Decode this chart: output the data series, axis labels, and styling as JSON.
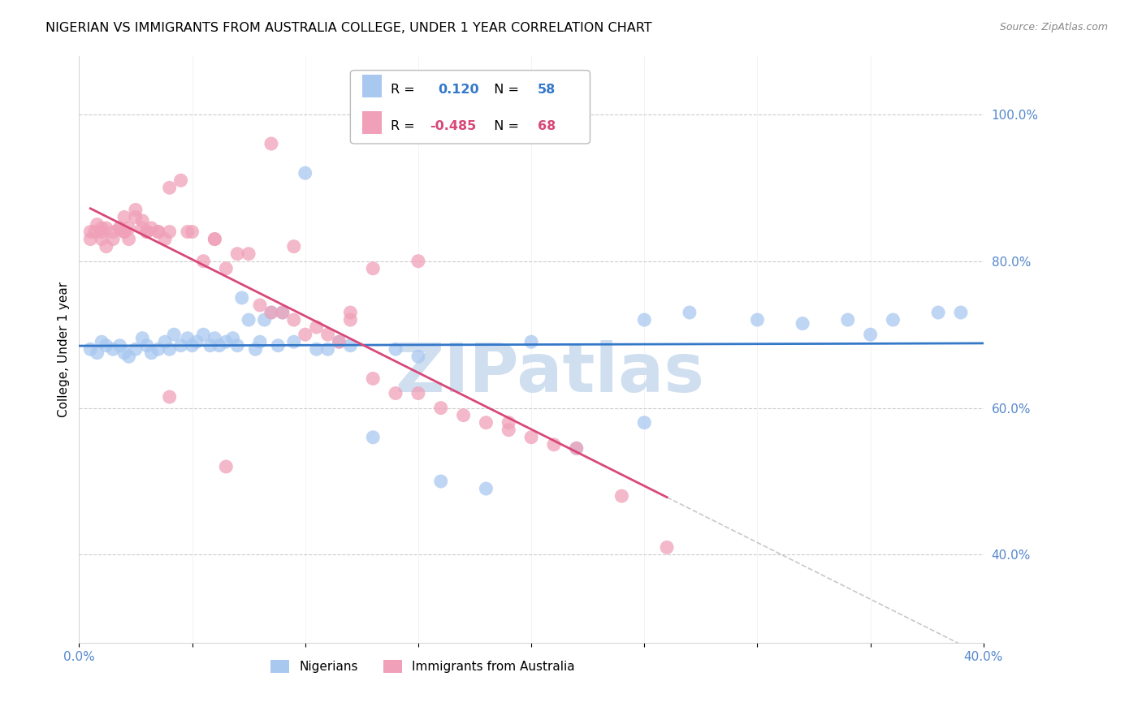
{
  "title": "NIGERIAN VS IMMIGRANTS FROM AUSTRALIA COLLEGE, UNDER 1 YEAR CORRELATION CHART",
  "source": "Source: ZipAtlas.com",
  "ylabel": "College, Under 1 year",
  "right_ytick_vals": [
    0.4,
    0.6,
    0.8,
    1.0
  ],
  "right_ytick_labels": [
    "40.0%",
    "60.0%",
    "80.0%",
    "100.0%"
  ],
  "xlim": [
    0.0,
    0.4
  ],
  "ylim": [
    0.28,
    1.08
  ],
  "xtick_positions": [
    0.0,
    0.05,
    0.1,
    0.15,
    0.2,
    0.25,
    0.3,
    0.35,
    0.4
  ],
  "xtick_labels": [
    "0.0%",
    "",
    "",
    "",
    "",
    "",
    "",
    "",
    "40.0%"
  ],
  "blue_color": "#A8C8F0",
  "pink_color": "#F0A0B8",
  "blue_line_color": "#3478C8",
  "pink_line_color": "#D84878",
  "dashed_line_color": "#C8C8CC",
  "R_blue": 0.12,
  "N_blue": 58,
  "R_pink": -0.485,
  "N_pink": 68,
  "blue_points_x": [
    0.005,
    0.008,
    0.01,
    0.012,
    0.015,
    0.018,
    0.02,
    0.022,
    0.025,
    0.028,
    0.03,
    0.032,
    0.035,
    0.038,
    0.04,
    0.042,
    0.045,
    0.048,
    0.05,
    0.052,
    0.055,
    0.058,
    0.06,
    0.062,
    0.065,
    0.068,
    0.07,
    0.072,
    0.075,
    0.078,
    0.08,
    0.082,
    0.085,
    0.088,
    0.09,
    0.095,
    0.1,
    0.105,
    0.11,
    0.115,
    0.12,
    0.13,
    0.14,
    0.15,
    0.16,
    0.18,
    0.2,
    0.22,
    0.25,
    0.27,
    0.3,
    0.32,
    0.34,
    0.36,
    0.38,
    0.35,
    0.39,
    0.25
  ],
  "blue_points_y": [
    0.68,
    0.675,
    0.69,
    0.685,
    0.68,
    0.685,
    0.675,
    0.67,
    0.68,
    0.695,
    0.685,
    0.675,
    0.68,
    0.69,
    0.68,
    0.7,
    0.685,
    0.695,
    0.685,
    0.69,
    0.7,
    0.685,
    0.695,
    0.685,
    0.69,
    0.695,
    0.685,
    0.75,
    0.72,
    0.68,
    0.69,
    0.72,
    0.73,
    0.685,
    0.73,
    0.69,
    0.92,
    0.68,
    0.68,
    0.69,
    0.685,
    0.56,
    0.68,
    0.67,
    0.5,
    0.49,
    0.69,
    0.545,
    0.58,
    0.73,
    0.72,
    0.715,
    0.72,
    0.72,
    0.73,
    0.7,
    0.73,
    0.72
  ],
  "pink_points_x": [
    0.005,
    0.005,
    0.007,
    0.008,
    0.01,
    0.01,
    0.01,
    0.012,
    0.012,
    0.015,
    0.015,
    0.018,
    0.018,
    0.02,
    0.02,
    0.02,
    0.022,
    0.022,
    0.025,
    0.025,
    0.028,
    0.028,
    0.03,
    0.03,
    0.032,
    0.035,
    0.035,
    0.038,
    0.04,
    0.04,
    0.045,
    0.048,
    0.05,
    0.055,
    0.06,
    0.06,
    0.065,
    0.07,
    0.075,
    0.08,
    0.085,
    0.09,
    0.095,
    0.1,
    0.105,
    0.11,
    0.115,
    0.12,
    0.13,
    0.14,
    0.15,
    0.16,
    0.17,
    0.18,
    0.19,
    0.2,
    0.21,
    0.22,
    0.15,
    0.095,
    0.13,
    0.19,
    0.24,
    0.26,
    0.085,
    0.12,
    0.065,
    0.04
  ],
  "pink_points_y": [
    0.84,
    0.83,
    0.84,
    0.85,
    0.83,
    0.84,
    0.845,
    0.845,
    0.82,
    0.83,
    0.84,
    0.845,
    0.845,
    0.84,
    0.84,
    0.86,
    0.845,
    0.83,
    0.86,
    0.87,
    0.845,
    0.855,
    0.84,
    0.84,
    0.845,
    0.84,
    0.84,
    0.83,
    0.9,
    0.84,
    0.91,
    0.84,
    0.84,
    0.8,
    0.83,
    0.83,
    0.79,
    0.81,
    0.81,
    0.74,
    0.73,
    0.73,
    0.72,
    0.7,
    0.71,
    0.7,
    0.69,
    0.72,
    0.64,
    0.62,
    0.62,
    0.6,
    0.59,
    0.58,
    0.57,
    0.56,
    0.55,
    0.545,
    0.8,
    0.82,
    0.79,
    0.58,
    0.48,
    0.41,
    0.96,
    0.73,
    0.52,
    0.615
  ],
  "watermark_text": "ZIPatlas",
  "watermark_color": "#D0DFF0",
  "background_color": "#FFFFFF",
  "grid_color": "#CCCCCC",
  "axis_color": "#5588CC",
  "title_fontsize": 11.5,
  "label_fontsize": 11,
  "tick_fontsize": 11,
  "legend_box_facecolor": "#FFFFFF",
  "legend_box_edgecolor": "#AAAAAA"
}
